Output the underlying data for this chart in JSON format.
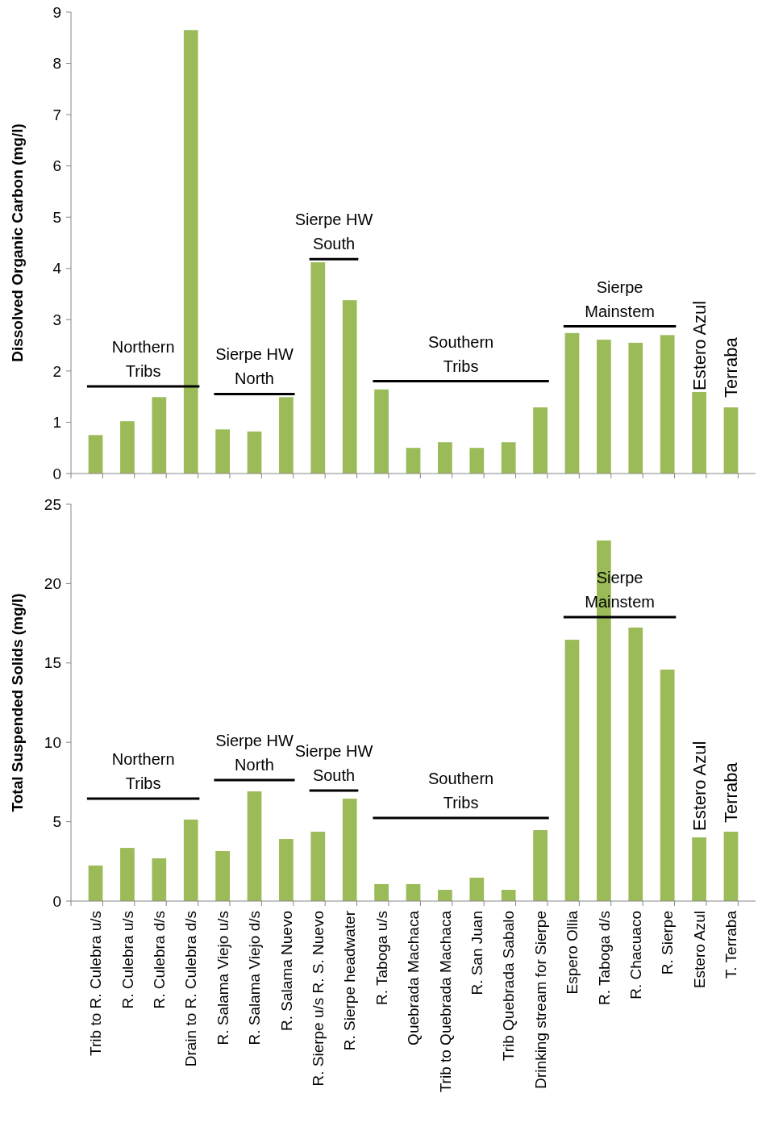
{
  "chart_data": [
    {
      "type": "bar",
      "ylabel": "Dissolved Organic Carbon (mg/l)",
      "categories": [
        null,
        null,
        null,
        null,
        null,
        null,
        null,
        null,
        null,
        null,
        null,
        null,
        null,
        null,
        null,
        null,
        null,
        null,
        null,
        null,
        null
      ],
      "values": [
        0.75,
        1.02,
        1.49,
        8.65,
        0.86,
        0.82,
        1.49,
        4.12,
        3.38,
        1.64,
        0.5,
        0.61,
        0.5,
        0.61,
        1.29,
        2.74,
        2.61,
        2.55,
        2.7,
        1.59,
        1.29
      ],
      "color": "#9bbb59",
      "ylim": [
        0,
        9
      ],
      "yticks": [
        0,
        1,
        2,
        3,
        4,
        5,
        6,
        7,
        8,
        9
      ],
      "tick_labels": "y",
      "annotations": [
        "Northern Tribs",
        "Sierpe HW North",
        "Sierpe HW South",
        "Southern Tribs",
        "Sierpe Mainstem",
        "Estero Azul",
        "Terraba"
      ]
    },
    {
      "type": "bar",
      "ylabel": "Total Suspended Solids (mg/l)",
      "categories": [
        "Trib to R. Culebra u/s",
        "R. Culebra u/s",
        "R. Culebra d/s",
        "Drain to R. Culebra d/s",
        "R. Salama Viejo u/s",
        "R. Salama Viejo d/s",
        "R. Salama Nuevo",
        "R. Sierpe u/s R. S. Nuevo",
        "R. Sierpe headwater",
        "R. Taboga u/s",
        "Quebrada Machaca",
        "Trib to Quebrada Machaca",
        "R. San Juan",
        "Trib Quebrada Sabalo",
        "Drinking stream for Sierpe",
        "Espero Ollia",
        "R. Taboga d/s",
        "R. Chacuaco",
        "R. Sierpe",
        "Estero Azul",
        "T. Terraba"
      ],
      "values": [
        2.24,
        3.35,
        2.69,
        5.13,
        3.15,
        6.91,
        3.91,
        4.37,
        6.45,
        1.07,
        1.07,
        0.71,
        1.47,
        0.71,
        4.47,
        16.46,
        22.71,
        17.23,
        14.58,
        4.01,
        4.37
      ],
      "color": "#9bbb59",
      "ylim": [
        0,
        25
      ],
      "yticks": [
        0,
        5,
        10,
        15,
        20,
        25
      ],
      "annotations": [
        "Northern Tribs",
        "Sierpe HW North",
        "Sierpe HW South",
        "Southern Tribs",
        "Sierpe Mainstem",
        "Estero Azul",
        "Terraba"
      ]
    }
  ]
}
